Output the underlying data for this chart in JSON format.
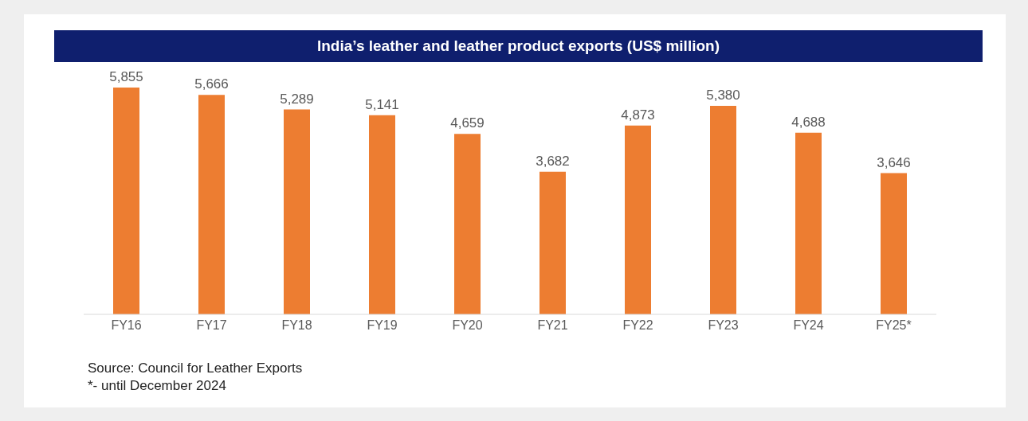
{
  "chart_data": {
    "type": "bar",
    "title": "India’s leather and leather product exports (US$ million)",
    "categories": [
      "FY16",
      "FY17",
      "FY18",
      "FY19",
      "FY20",
      "FY21",
      "FY22",
      "FY23",
      "FY24",
      "FY25*"
    ],
    "values": [
      5855,
      5666,
      5289,
      5141,
      4659,
      3682,
      4873,
      5380,
      4688,
      3646
    ],
    "value_labels": [
      "5,855",
      "5,666",
      "5,289",
      "5,141",
      "4,659",
      "3,682",
      "4,873",
      "5,380",
      "4,688",
      "3,646"
    ],
    "color": "#ed7d31",
    "annotations": [
      "Source: Council for Leather Exports",
      "*- until December 2024"
    ]
  }
}
